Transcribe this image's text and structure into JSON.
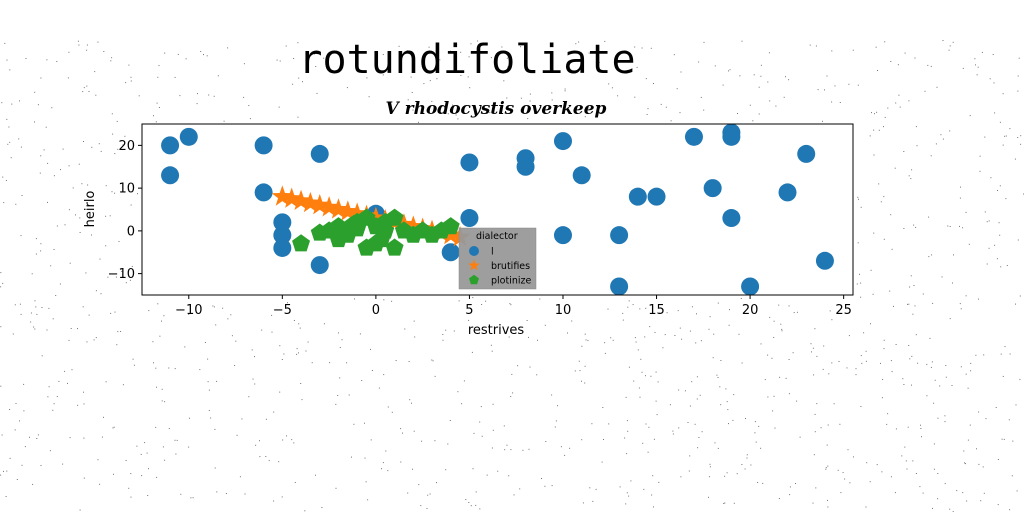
{
  "figure": {
    "suptitle": "rotundifoliate"
  },
  "colors": {
    "series_l": "#1f77b4",
    "series_brutifies": "#ff7f0e",
    "series_plotinize": "#2ca02c",
    "legend_bg": "#999999",
    "noise": "#000000"
  },
  "chart_data": {
    "type": "scatter",
    "title": "V rhodocystis overkeep",
    "xlabel": "restrives",
    "ylabel": "heirlo",
    "xlim": [
      -12.5,
      25.5
    ],
    "ylim": [
      -15,
      25
    ],
    "xticks": [
      -10,
      -5,
      0,
      5,
      10,
      15,
      20,
      25
    ],
    "xtick_labels": [
      "−10",
      "−5",
      "0",
      "5",
      "10",
      "15",
      "20",
      "25"
    ],
    "yticks": [
      -10,
      0,
      10,
      20
    ],
    "ytick_labels": [
      "−10",
      "0",
      "10",
      "20"
    ],
    "grid": false,
    "legend": {
      "title": "dialector",
      "placement": "lower-center"
    },
    "series": [
      {
        "name": "l",
        "marker": "circle",
        "x": [
          -11,
          -10,
          -11,
          -6,
          -6,
          -5,
          -5,
          -5,
          -3,
          -3,
          0,
          4,
          5,
          5,
          8,
          8,
          10,
          10,
          11,
          13,
          13,
          14,
          15,
          17,
          18,
          19,
          19,
          19,
          20,
          22,
          23,
          24
        ],
        "y": [
          20,
          22,
          13,
          20,
          9,
          2,
          -1,
          -4,
          18,
          -8,
          4,
          -5,
          16,
          3,
          17,
          15,
          21,
          -1,
          13,
          -1,
          -13,
          8,
          8,
          22,
          10,
          23,
          22,
          3,
          -13,
          9,
          18,
          -7
        ]
      },
      {
        "name": "brutifies",
        "marker": "star",
        "x": [
          -5,
          -4.5,
          -4,
          -3.5,
          -3,
          -2.5,
          -2,
          -1.5,
          -1,
          -0.5,
          0,
          0.5,
          1,
          1.5,
          2,
          2.5,
          3,
          3.5,
          4,
          4.5
        ],
        "y": [
          8,
          7.5,
          7,
          6.5,
          6,
          5.5,
          5,
          4.5,
          4,
          3.5,
          3,
          2.5,
          2,
          1.5,
          1,
          0.5,
          0,
          -0.5,
          -1,
          -1.5
        ]
      },
      {
        "name": "plotinize",
        "marker": "pentagon",
        "x": [
          -4,
          -3,
          -2.5,
          -2,
          -2,
          -1.5,
          -1,
          -1,
          -0.5,
          -0.5,
          0,
          0,
          0.5,
          0.5,
          1,
          1,
          1.5,
          2,
          2.5,
          3,
          3.5,
          4,
          0.3,
          -1.2
        ],
        "y": [
          -3,
          -0.5,
          0,
          -2,
          1,
          -1,
          2,
          0.5,
          -4,
          3,
          1,
          -3,
          0,
          2,
          -4,
          3,
          0,
          -1,
          0,
          -1,
          0,
          1,
          -2,
          1.5
        ]
      }
    ]
  }
}
